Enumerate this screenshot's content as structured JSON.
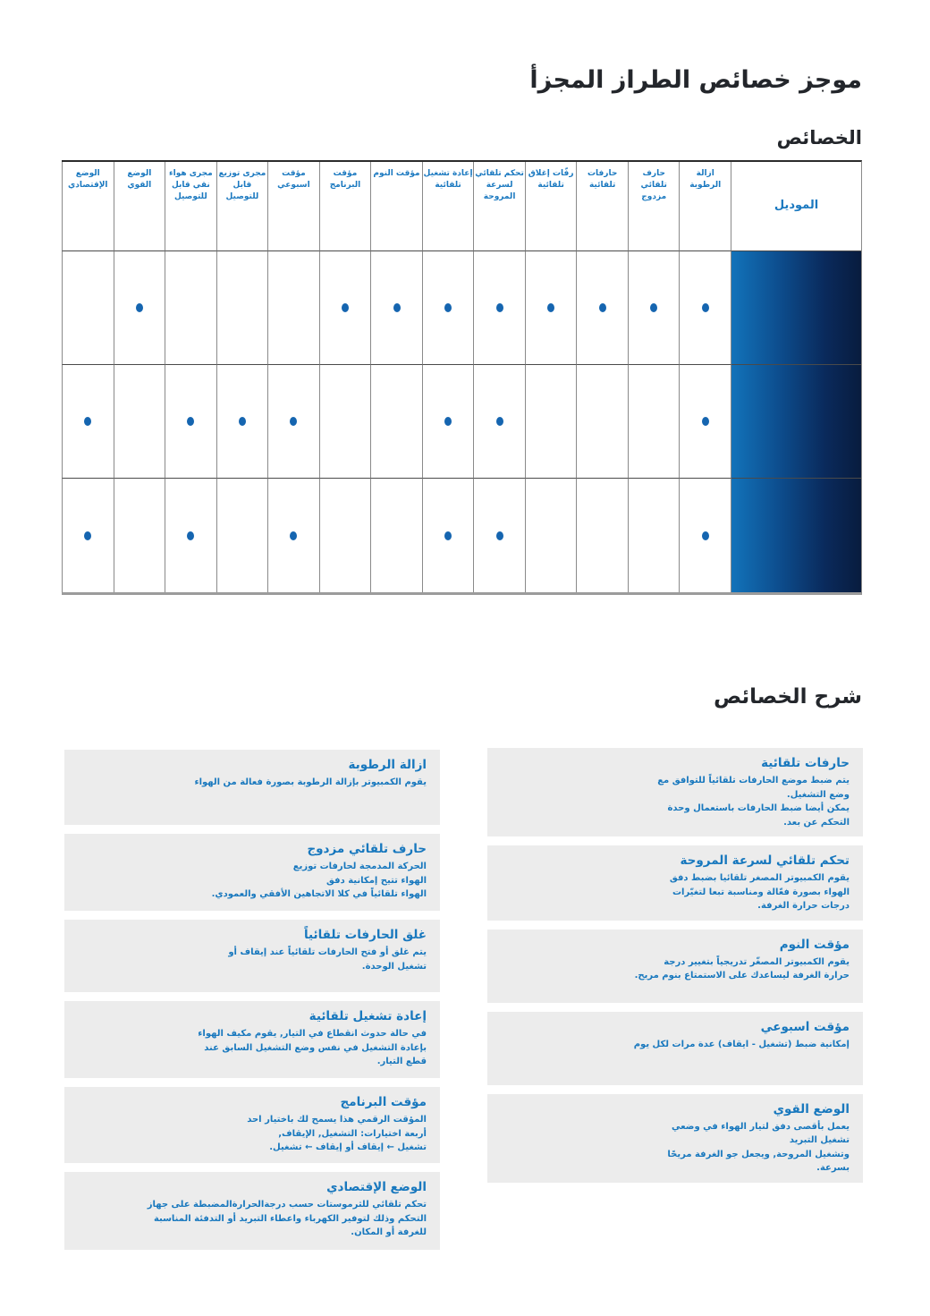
{
  "page": {
    "title": "موجز خصائص الطراز المجزأ",
    "features_heading": "الخصائص",
    "explanations_heading": "شرح الخصائص"
  },
  "table": {
    "model_header": "الموديل",
    "columns": [
      "ازالة الرطوبة",
      "حارف تلقائي\nمزدوج",
      "حارفات تلقائية",
      "رفّات إغلاق\nتلقائية",
      "تحكم تلقائي\nلسرعة المروحة",
      "إعادة تشغيل\nتلقائية",
      "مؤقت النوم",
      "مؤقت البرنامج",
      "مؤقت اسبوعي",
      "مجرى توزيع\nقابل للتوصيل",
      "مجرى هواء\nنقي قابل\nللتوصيل",
      "الوضع القوي",
      "الوضع الإقتصادي"
    ],
    "rows": [
      [
        1,
        1,
        1,
        1,
        1,
        1,
        1,
        1,
        0,
        0,
        0,
        1,
        0
      ],
      [
        1,
        0,
        0,
        0,
        1,
        1,
        0,
        0,
        1,
        1,
        1,
        0,
        1
      ],
      [
        1,
        0,
        0,
        0,
        1,
        1,
        0,
        0,
        1,
        0,
        1,
        0,
        1
      ]
    ]
  },
  "explanations": {
    "right": [
      {
        "title": "حارفات تلقائية",
        "text": "يتم ضبط موضع الحارفات تلقائياً للتوافق مع\nوضع التشغيل.\nيمكن أيضا ضبط الحارفات باستعمال وحدة\nالتحكم عن بعد."
      },
      {
        "title": "تحكم تلقائي لسرعة المروحة",
        "text": "يقوم الكمبيوتر المصغر تلقائيا بضبط دفق\nالهواء بصورة فعّالة ومناسبة تبعا لتغيّرات\nدرجات حرارة الغرفة."
      },
      {
        "title": "مؤقت النوم",
        "text": "يقوم الكمبيوتر المصغّر تدريجياً بتغيير درجة\nحرارة الغرفة ليساعدك على الاستمتاع بنوم مريح."
      },
      {
        "title": "مؤقت اسبوعي",
        "text": "إمكانية ضبط (تشغيل - ايقاف) عدة مرات لكل يوم"
      },
      {
        "title": "الوضع القوي",
        "text": "يعمل بأقصى دفق لتيار الهواء في وضعي\nتشغيل التبريد\nوتشغيل المروحة, ويجعل جو الغرفة مريحًا\nبسرعة."
      }
    ],
    "left": [
      {
        "title": "ازالة الرطوبة",
        "text": "يقوم الكمبيوتر بإزالة الرطوبة بصورة فعالة من الهواء"
      },
      {
        "title": "حارف تلقائي مزدوج",
        "text": "الحركة المدمجة لحارفات توزيع\nالهواء تتيح إمكانية دفق\nالهواء تلقائياً في كلا الاتجاهين الأفقي والعمودي."
      },
      {
        "title": "غلق الحارفات تلقائياً",
        "text": "يتم غلق أو فتح الحارفات تلقائياً عند إيقاف أو\nتشغيل الوحدة."
      },
      {
        "title": "إعادة تشغيل تلقائية",
        "text": "في حالة حدوث انقطاع في التيار, يقوم مكيف الهواء\nبإعادة التشغيل في نفس وضع التشغيل السابق عند\nقطع التيار."
      },
      {
        "title": "مؤقت البرنامج",
        "text": "المؤقت الرقمي هذا يسمح لك باختيار احد\nأربعة اختيارات: التشغيل, الإيقاف,\nتشغيل ← إيقاف أو إيقاف ← تشغيل."
      },
      {
        "title": "الوضع الإقتصادي",
        "text": "تحكم تلقائي للثرموستات حسب درجةالحرارةالمضبطة على جهاز\nالتحكم وذلك لتوفير الكهرباء واعطاء التبريد أو التدفئة المناسبة\nللغرفة أو المكان."
      }
    ]
  },
  "colors": {
    "accent_blue": "#1878be",
    "dot_blue": "#1565b0",
    "heading_dark": "#23262b",
    "model_gradient_start": "#1273ba",
    "model_gradient_end": "#081c3e",
    "box_background": "#ececec"
  }
}
